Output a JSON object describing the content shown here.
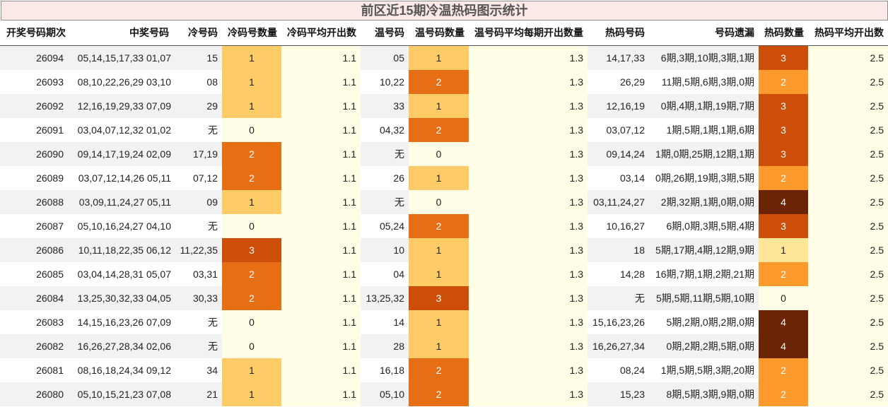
{
  "title": "前区近15期冷温热码图示统计",
  "headers": [
    "开奖号码期次",
    "中奖号码",
    "冷号码",
    "冷码号数量",
    "冷码平均开出数",
    "温号码",
    "温号码数量",
    "温号码平均每期开出数量",
    "热码号码",
    "号码遗漏",
    "热码数量",
    "热码平均开出数"
  ],
  "colors": {
    "count_0": "#fffde6",
    "count_1": "#fdcc66",
    "count_2": "#e66f16",
    "count_3": "#cc4e08",
    "count_4": "#6b2406",
    "hot_1": "#fee598",
    "hot_2": "#fd9a2d",
    "hot_3": "#cc4e08",
    "hot_4": "#6b2406",
    "row_alt": "#f2f2f2",
    "avg_bg": "#fffde6"
  },
  "rows": [
    {
      "period": "26094",
      "draw": "05,14,15,17,33 01,07",
      "cold": "15",
      "cold_count": "1",
      "cold_avg": "1.1",
      "warm": "05",
      "warm_count": "1",
      "warm_avg": "1.3",
      "hot": "14,17,33",
      "miss": "6期,3期,10期,3期,1期",
      "hot_count": "3",
      "hot_avg": "2.5"
    },
    {
      "period": "26093",
      "draw": "08,10,22,26,29 03,10",
      "cold": "08",
      "cold_count": "1",
      "cold_avg": "1.1",
      "warm": "10,22",
      "warm_count": "2",
      "warm_avg": "1.3",
      "hot": "26,29",
      "miss": "11期,5期,6期,3期,0期",
      "hot_count": "2",
      "hot_avg": "2.5"
    },
    {
      "period": "26092",
      "draw": "12,16,19,29,33 07,09",
      "cold": "29",
      "cold_count": "1",
      "cold_avg": "1.1",
      "warm": "33",
      "warm_count": "1",
      "warm_avg": "1.3",
      "hot": "12,16,19",
      "miss": "0期,4期,1期,19期,7期",
      "hot_count": "3",
      "hot_avg": "2.5"
    },
    {
      "period": "26091",
      "draw": "03,04,07,12,32 01,02",
      "cold": "无",
      "cold_count": "0",
      "cold_avg": "1.1",
      "warm": "04,32",
      "warm_count": "2",
      "warm_avg": "1.3",
      "hot": "03,07,12",
      "miss": "1期,5期,1期,1期,6期",
      "hot_count": "3",
      "hot_avg": "2.5"
    },
    {
      "period": "26090",
      "draw": "09,14,17,19,24 02,09",
      "cold": "17,19",
      "cold_count": "2",
      "cold_avg": "1.1",
      "warm": "无",
      "warm_count": "0",
      "warm_avg": "1.3",
      "hot": "09,14,24",
      "miss": "1期,0期,25期,12期,1期",
      "hot_count": "3",
      "hot_avg": "2.5"
    },
    {
      "period": "26089",
      "draw": "03,07,12,14,26 05,11",
      "cold": "07,12",
      "cold_count": "2",
      "cold_avg": "1.1",
      "warm": "26",
      "warm_count": "1",
      "warm_avg": "1.3",
      "hot": "03,14",
      "miss": "0期,26期,19期,3期,5期",
      "hot_count": "2",
      "hot_avg": "2.5"
    },
    {
      "period": "26088",
      "draw": "03,09,11,24,27 05,11",
      "cold": "09",
      "cold_count": "1",
      "cold_avg": "1.1",
      "warm": "无",
      "warm_count": "0",
      "warm_avg": "1.3",
      "hot": "03,11,24,27",
      "miss": "2期,32期,1期,0期,0期",
      "hot_count": "4",
      "hot_avg": "2.5"
    },
    {
      "period": "26087",
      "draw": "05,10,16,24,27 04,10",
      "cold": "无",
      "cold_count": "0",
      "cold_avg": "1.1",
      "warm": "05,24",
      "warm_count": "2",
      "warm_avg": "1.3",
      "hot": "10,16,27",
      "miss": "6期,0期,3期,5期,4期",
      "hot_count": "3",
      "hot_avg": "2.5"
    },
    {
      "period": "26086",
      "draw": "10,11,18,22,35 06,12",
      "cold": "11,22,35",
      "cold_count": "3",
      "cold_avg": "1.1",
      "warm": "10",
      "warm_count": "1",
      "warm_avg": "1.3",
      "hot": "18",
      "miss": "5期,17期,4期,12期,9期",
      "hot_count": "1",
      "hot_avg": "2.5"
    },
    {
      "period": "26085",
      "draw": "03,04,14,28,31 05,07",
      "cold": "03,31",
      "cold_count": "2",
      "cold_avg": "1.1",
      "warm": "04",
      "warm_count": "1",
      "warm_avg": "1.3",
      "hot": "14,28",
      "miss": "16期,7期,1期,2期,21期",
      "hot_count": "2",
      "hot_avg": "2.5"
    },
    {
      "period": "26084",
      "draw": "13,25,30,32,33 04,05",
      "cold": "30,33",
      "cold_count": "2",
      "cold_avg": "1.1",
      "warm": "13,25,32",
      "warm_count": "3",
      "warm_avg": "1.3",
      "hot": "无",
      "miss": "5期,5期,11期,5期,10期",
      "hot_count": "0",
      "hot_avg": "2.5"
    },
    {
      "period": "26083",
      "draw": "14,15,16,23,26 07,09",
      "cold": "无",
      "cold_count": "0",
      "cold_avg": "1.1",
      "warm": "14",
      "warm_count": "1",
      "warm_avg": "1.3",
      "hot": "15,16,23,26",
      "miss": "5期,2期,0期,2期,0期",
      "hot_count": "4",
      "hot_avg": "2.5"
    },
    {
      "period": "26082",
      "draw": "16,26,27,28,34 02,06",
      "cold": "无",
      "cold_count": "0",
      "cold_avg": "1.1",
      "warm": "28",
      "warm_count": "1",
      "warm_avg": "1.3",
      "hot": "16,26,27,34",
      "miss": "0期,2期,2期,5期,0期",
      "hot_count": "4",
      "hot_avg": "2.5"
    },
    {
      "period": "26081",
      "draw": "08,16,18,24,34 09,12",
      "cold": "34",
      "cold_count": "1",
      "cold_avg": "1.1",
      "warm": "16,18",
      "warm_count": "2",
      "warm_avg": "1.3",
      "hot": "08,24",
      "miss": "1期,5期,5期,3期,20期",
      "hot_count": "2",
      "hot_avg": "2.5"
    },
    {
      "period": "26080",
      "draw": "05,10,15,21,23 07,08",
      "cold": "21",
      "cold_count": "1",
      "cold_avg": "1.1",
      "warm": "05,10",
      "warm_count": "2",
      "warm_avg": "1.3",
      "hot": "15,23",
      "miss": "8期,5期,3期,9期,0期",
      "hot_count": "2",
      "hot_avg": "2.5"
    }
  ]
}
